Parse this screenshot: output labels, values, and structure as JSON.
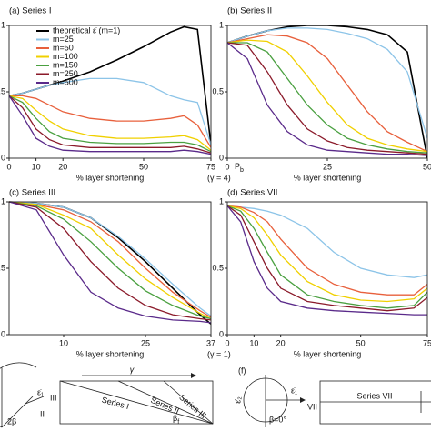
{
  "chart_data": [
    {
      "type": "line",
      "title": "(a) Series I",
      "xlabel": "% layer shortening",
      "annotation": "(γ = 4)",
      "legend": "upper left",
      "x": [
        0,
        5,
        10,
        15,
        20,
        30,
        40,
        50,
        60,
        65,
        70,
        75
      ],
      "xlim": [
        0,
        75
      ],
      "ylim": [
        0,
        1
      ],
      "xticks": [
        0,
        10,
        20,
        50,
        75
      ],
      "yticks": [
        0,
        0.5,
        1
      ],
      "series": [
        {
          "name": "theoretical ε̇ (m=1)",
          "color": "#000000",
          "values": [
            0.47,
            0.49,
            0.52,
            0.55,
            0.58,
            0.65,
            0.74,
            0.84,
            0.95,
            0.99,
            0.97,
            0.1
          ]
        },
        {
          "name": "m=25",
          "color": "#8cc4e8",
          "values": [
            0.47,
            0.49,
            0.52,
            0.55,
            0.57,
            0.6,
            0.6,
            0.57,
            0.47,
            0.44,
            0.42,
            0.1
          ]
        },
        {
          "name": "m=50",
          "color": "#e8603c",
          "values": [
            0.47,
            0.47,
            0.45,
            0.4,
            0.35,
            0.3,
            0.28,
            0.28,
            0.3,
            0.32,
            0.25,
            0.08
          ]
        },
        {
          "name": "m=100",
          "color": "#f0d000",
          "values": [
            0.47,
            0.45,
            0.36,
            0.28,
            0.22,
            0.17,
            0.15,
            0.15,
            0.16,
            0.17,
            0.14,
            0.06
          ]
        },
        {
          "name": "m=150",
          "color": "#4aa040",
          "values": [
            0.47,
            0.42,
            0.3,
            0.2,
            0.15,
            0.12,
            0.11,
            0.11,
            0.12,
            0.12,
            0.1,
            0.05
          ]
        },
        {
          "name": "m=250",
          "color": "#8b1a2a",
          "values": [
            0.47,
            0.38,
            0.22,
            0.14,
            0.1,
            0.08,
            0.08,
            0.08,
            0.08,
            0.09,
            0.07,
            0.04
          ]
        },
        {
          "name": "m=500",
          "color": "#5a2a8a",
          "values": [
            0.47,
            0.32,
            0.15,
            0.09,
            0.06,
            0.05,
            0.05,
            0.05,
            0.05,
            0.06,
            0.05,
            0.03
          ]
        }
      ]
    },
    {
      "type": "line",
      "title": "(b) Series II",
      "xlabel": "% layer shortening",
      "marker_label": {
        "text": "P",
        "sub": "b"
      },
      "x": [
        0,
        5,
        10,
        15,
        20,
        25,
        30,
        35,
        40,
        45,
        50
      ],
      "xlim": [
        0,
        50
      ],
      "ylim": [
        0,
        1
      ],
      "xticks": [
        0,
        25,
        50
      ],
      "yticks": [
        0,
        0.5,
        1
      ],
      "series": [
        {
          "color": "#000000",
          "values": [
            0.87,
            0.92,
            0.96,
            0.99,
            1.0,
            1.0,
            0.99,
            0.97,
            0.93,
            0.8,
            0.0
          ]
        },
        {
          "color": "#8cc4e8",
          "values": [
            0.87,
            0.92,
            0.96,
            0.98,
            0.98,
            0.97,
            0.94,
            0.9,
            0.82,
            0.65,
            0.15
          ]
        },
        {
          "color": "#e8603c",
          "values": [
            0.87,
            0.9,
            0.93,
            0.92,
            0.87,
            0.75,
            0.55,
            0.35,
            0.2,
            0.12,
            0.05
          ]
        },
        {
          "color": "#f0d000",
          "values": [
            0.87,
            0.89,
            0.88,
            0.8,
            0.62,
            0.42,
            0.25,
            0.15,
            0.1,
            0.07,
            0.05
          ]
        },
        {
          "color": "#4aa040",
          "values": [
            0.87,
            0.87,
            0.8,
            0.6,
            0.4,
            0.25,
            0.15,
            0.1,
            0.07,
            0.05,
            0.04
          ]
        },
        {
          "color": "#8b1a2a",
          "values": [
            0.87,
            0.85,
            0.65,
            0.4,
            0.22,
            0.13,
            0.08,
            0.06,
            0.05,
            0.04,
            0.03
          ]
        },
        {
          "color": "#5a2a8a",
          "values": [
            0.87,
            0.75,
            0.4,
            0.2,
            0.1,
            0.06,
            0.05,
            0.04,
            0.03,
            0.03,
            0.02
          ]
        }
      ]
    },
    {
      "type": "line",
      "title": "(c) Series III",
      "xlabel": "% layer shortening",
      "annotation": "(γ = 1)",
      "x": [
        0,
        5,
        10,
        15,
        20,
        25,
        30,
        35,
        37
      ],
      "xlim": [
        0,
        37
      ],
      "ylim": [
        0,
        1
      ],
      "xticks": [
        10,
        25,
        37
      ],
      "yticks": [
        0,
        0.5,
        1
      ],
      "series": [
        {
          "color": "#000000",
          "values": [
            1,
            0.99,
            0.96,
            0.88,
            0.73,
            0.55,
            0.35,
            0.15,
            0.08
          ]
        },
        {
          "color": "#8cc4e8",
          "values": [
            1,
            0.99,
            0.96,
            0.88,
            0.74,
            0.57,
            0.38,
            0.2,
            0.14
          ]
        },
        {
          "color": "#e8603c",
          "values": [
            1,
            0.98,
            0.94,
            0.85,
            0.7,
            0.5,
            0.32,
            0.18,
            0.13
          ]
        },
        {
          "color": "#f0d000",
          "values": [
            1,
            0.98,
            0.9,
            0.8,
            0.6,
            0.42,
            0.28,
            0.16,
            0.12
          ]
        },
        {
          "color": "#4aa040",
          "values": [
            1,
            0.97,
            0.87,
            0.7,
            0.5,
            0.33,
            0.22,
            0.14,
            0.12
          ]
        },
        {
          "color": "#8b1a2a",
          "values": [
            1,
            0.96,
            0.8,
            0.55,
            0.35,
            0.22,
            0.15,
            0.12,
            0.11
          ]
        },
        {
          "color": "#5a2a8a",
          "values": [
            1,
            0.94,
            0.6,
            0.32,
            0.2,
            0.14,
            0.11,
            0.1,
            0.09
          ]
        }
      ]
    },
    {
      "type": "line",
      "title": "(d) Series VII",
      "xlabel": "% layer shortening",
      "x": [
        0,
        5,
        10,
        15,
        20,
        30,
        40,
        50,
        60,
        70,
        75
      ],
      "xlim": [
        0,
        75
      ],
      "ylim": [
        0,
        1
      ],
      "xticks": [
        0,
        10,
        20,
        50,
        75
      ],
      "yticks": [
        0,
        0.5,
        1
      ],
      "series": [
        {
          "color": "#8cc4e8",
          "values": [
            0.97,
            0.96,
            0.95,
            0.93,
            0.9,
            0.8,
            0.62,
            0.5,
            0.45,
            0.43,
            0.45
          ]
        },
        {
          "color": "#e8603c",
          "values": [
            0.97,
            0.96,
            0.92,
            0.85,
            0.72,
            0.5,
            0.38,
            0.32,
            0.3,
            0.3,
            0.38
          ]
        },
        {
          "color": "#f0d000",
          "values": [
            0.97,
            0.95,
            0.88,
            0.75,
            0.6,
            0.4,
            0.3,
            0.26,
            0.25,
            0.27,
            0.35
          ]
        },
        {
          "color": "#4aa040",
          "values": [
            0.97,
            0.93,
            0.8,
            0.62,
            0.45,
            0.3,
            0.25,
            0.22,
            0.2,
            0.22,
            0.32
          ]
        },
        {
          "color": "#8b1a2a",
          "values": [
            0.97,
            0.9,
            0.7,
            0.5,
            0.35,
            0.25,
            0.22,
            0.2,
            0.18,
            0.2,
            0.28
          ]
        },
        {
          "color": "#5a2a8a",
          "values": [
            0.97,
            0.85,
            0.55,
            0.35,
            0.25,
            0.2,
            0.18,
            0.17,
            0.16,
            0.15,
            0.15
          ]
        }
      ]
    }
  ],
  "diagrams": {
    "left": {
      "strain": "ε̇₁",
      "labels": [
        "III",
        "II"
      ],
      "angle": "2β"
    },
    "middle": {
      "shear": "γ",
      "series": [
        "Series I",
        "Series II",
        "Series III"
      ],
      "angle": {
        "text": "β",
        "sub": "f"
      }
    },
    "panel": "(f)",
    "circle": {
      "strain_2": "ε̇₂",
      "strain_1": "ε̇₁",
      "angle": "β=0°",
      "label": "VII"
    },
    "right": {
      "series": "Series VII"
    }
  }
}
